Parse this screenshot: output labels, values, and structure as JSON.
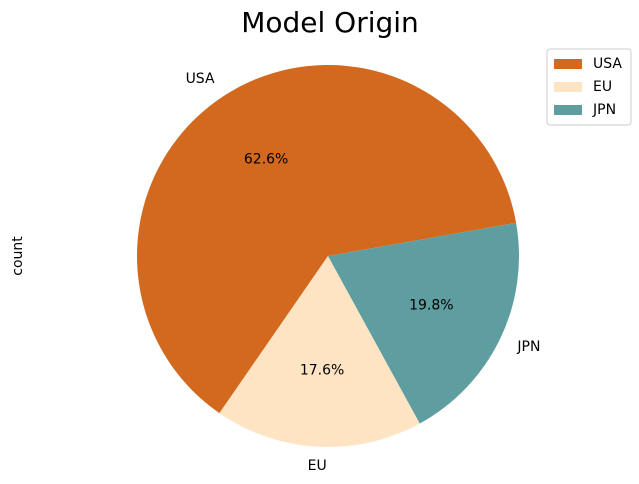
{
  "chart_data": {
    "type": "pie",
    "title": "Model Origin",
    "ylabel": "count",
    "categories": [
      "USA",
      "EU",
      "JPN"
    ],
    "values": [
      62.6,
      17.6,
      19.8
    ],
    "value_labels": [
      "62.6%",
      "17.6%",
      "19.8%"
    ],
    "colors": [
      "#d2691e",
      "#ffe4c4",
      "#5f9ea0"
    ],
    "legend": "upper right"
  }
}
